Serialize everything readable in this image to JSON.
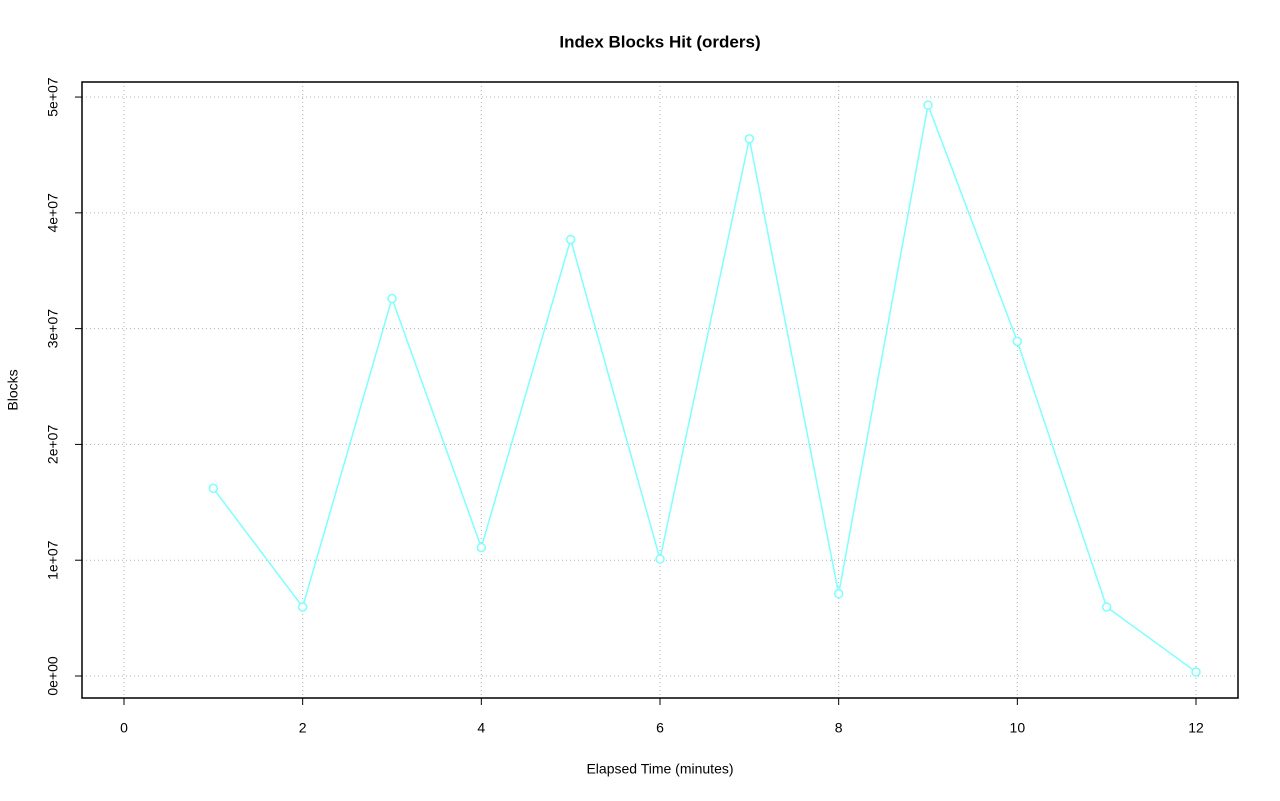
{
  "chart_data": {
    "type": "line",
    "title": "Index Blocks Hit (orders)",
    "x_label": "Elapsed Time (minutes)",
    "y_label": "Blocks",
    "series": [
      {
        "name": "orders",
        "color": "#7fffff",
        "x": [
          1,
          2,
          3,
          4,
          5,
          6,
          7,
          8,
          9,
          10,
          11,
          12
        ],
        "values": [
          16200000,
          5960000,
          32600000,
          11100000,
          37700000,
          10100000,
          46400000,
          7100000,
          49300000,
          28900000,
          5960000,
          350000
        ]
      }
    ],
    "xlim": [
      -0.47,
      12.47
    ],
    "xticks": [
      0,
      2,
      4,
      6,
      8,
      10,
      12
    ],
    "ylim": [
      -1900000,
      51300000
    ],
    "yticks": [
      {
        "value": 0,
        "label": "0e+00"
      },
      {
        "value": 10000000,
        "label": "1e+07"
      },
      {
        "value": 20000000,
        "label": "2e+07"
      },
      {
        "value": 30000000,
        "label": "3e+07"
      },
      {
        "value": 40000000,
        "label": "4e+07"
      },
      {
        "value": 50000000,
        "label": "5e+07"
      }
    ],
    "grid": true
  }
}
